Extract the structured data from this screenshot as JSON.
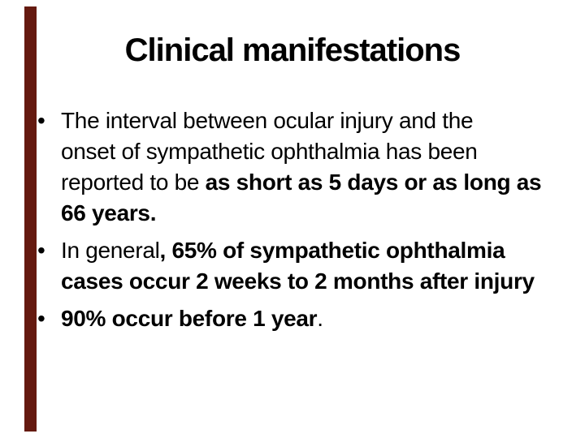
{
  "slide": {
    "title": "Clinical manifestations",
    "bullet_glyph": "•",
    "colors": {
      "background": "#FFFFFF",
      "text": "#000000",
      "accent_bar": "#651A10"
    },
    "bullets": [
      {
        "lines": [
          [
            {
              "text": "The interval between ocular injury and the",
              "bold": false
            }
          ],
          [
            {
              "text": "onset of sympathetic ophthalmia has been",
              "bold": false
            }
          ],
          [
            {
              "text": "reported to be ",
              "bold": false
            },
            {
              "text": "as short as 5 days or as long as",
              "bold": true
            }
          ],
          [
            {
              "text": "66 years.",
              "bold": true
            }
          ]
        ]
      },
      {
        "lines": [
          [
            {
              "text": "In general",
              "bold": false
            },
            {
              "text": ", 65% of sympathetic ophthalmia",
              "bold": true
            }
          ],
          [
            {
              "text": "cases occur 2 weeks to 2 months after injury",
              "bold": true
            }
          ]
        ]
      },
      {
        "lines": [
          [
            {
              "text": "90% occur before 1 year",
              "bold": true
            },
            {
              "text": ".",
              "bold": false
            }
          ]
        ]
      }
    ]
  }
}
